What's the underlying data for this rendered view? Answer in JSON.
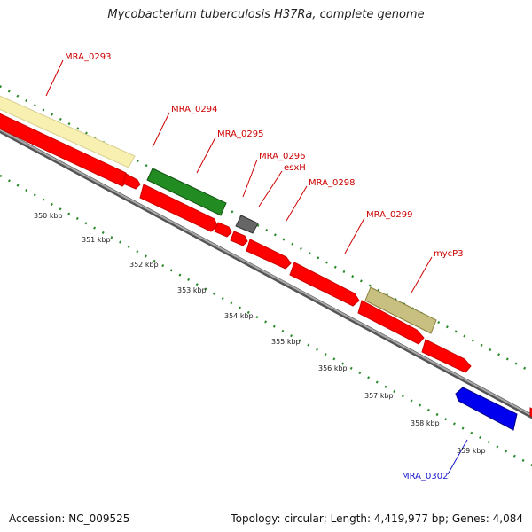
{
  "title": "Mycobacterium tuberculosis H37Ra, complete genome",
  "footer": {
    "accession": "Accession: NC_009525",
    "topology": "Topology: circular; Length: 4,419,977 bp; Genes: 4,084"
  },
  "scale_labels": [
    "350 kbp",
    "351 kbp",
    "352 kbp",
    "353 kbp",
    "354 kbp",
    "355 kbp",
    "356 kbp",
    "357 kbp",
    "358 kbp",
    "359 kbp"
  ],
  "gene_labels": [
    {
      "name": "MRA_0293",
      "color": "#cc0000"
    },
    {
      "name": "MRA_0294",
      "color": "#cc0000"
    },
    {
      "name": "MRA_0295",
      "color": "#cc0000"
    },
    {
      "name": "MRA_0296",
      "color": "#cc0000"
    },
    {
      "name": "esxH",
      "color": "#cc0000"
    },
    {
      "name": "MRA_0298",
      "color": "#cc0000"
    },
    {
      "name": "MRA_0299",
      "color": "#cc0000"
    },
    {
      "name": "mycP3",
      "color": "#cc0000"
    },
    {
      "name": "MRA_0302",
      "color": "#1a1acc"
    }
  ],
  "colors": {
    "forward_cds": "#ff0000",
    "reverse_cds": "#0000ee",
    "pale_feature": "#f7f0b0",
    "green_feature": "#228b22",
    "gray_feature": "#666666",
    "olive_feature": "#c8c080",
    "tick": "#2a8a2a",
    "backbone": "#888888"
  }
}
